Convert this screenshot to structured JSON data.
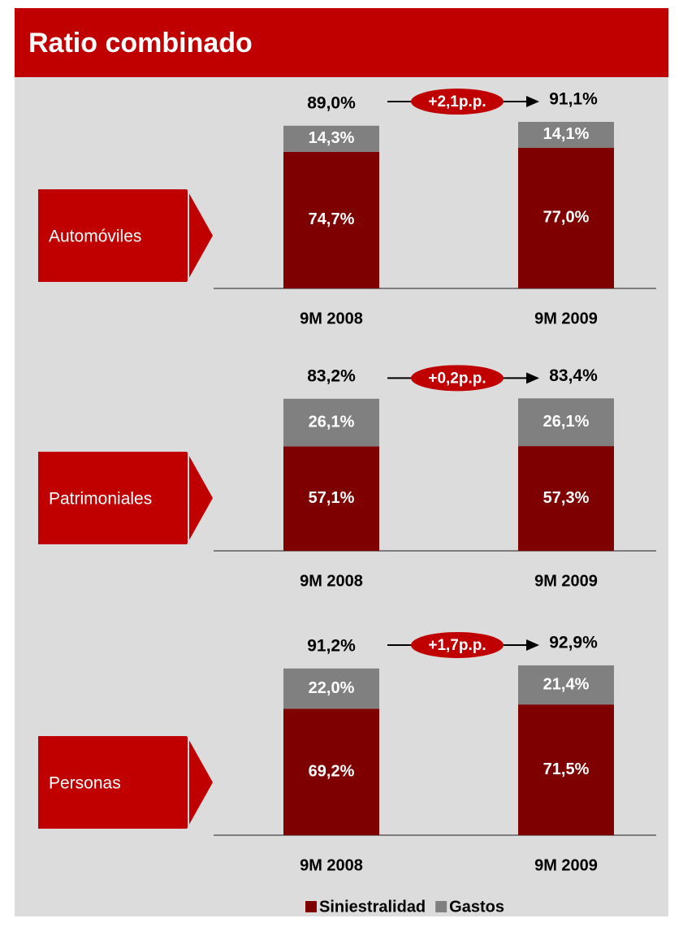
{
  "title": "Ratio combinado",
  "chart_data": [
    {
      "type": "bar",
      "stacked": true,
      "label": "Automóviles",
      "categories": [
        "9M 2008",
        "9M 2009"
      ],
      "series": [
        {
          "name": "Siniestralidad",
          "color": "#7f0000",
          "values": [
            74.7,
            77.0
          ],
          "value_labels": [
            "74,7%",
            "77,0%"
          ]
        },
        {
          "name": "Gastos",
          "color": "#808080",
          "values": [
            14.3,
            14.1
          ],
          "value_labels": [
            "14,3%",
            "14,1%"
          ]
        }
      ],
      "totals": [
        89.0,
        91.1
      ],
      "total_labels": [
        "89,0%",
        "91,1%"
      ],
      "annotation": "+2,1p.p.",
      "ylim": [
        0,
        100
      ]
    },
    {
      "type": "bar",
      "stacked": true,
      "label": "Patrimoniales",
      "categories": [
        "9M 2008",
        "9M 2009"
      ],
      "series": [
        {
          "name": "Siniestralidad",
          "color": "#7f0000",
          "values": [
            57.1,
            57.3
          ],
          "value_labels": [
            "57,1%",
            "57,3%"
          ]
        },
        {
          "name": "Gastos",
          "color": "#808080",
          "values": [
            26.1,
            26.1
          ],
          "value_labels": [
            "26,1%",
            "26,1%"
          ]
        }
      ],
      "totals": [
        83.2,
        83.4
      ],
      "total_labels": [
        "83,2%",
        "83,4%"
      ],
      "annotation": "+0,2p.p.",
      "ylim": [
        0,
        100
      ]
    },
    {
      "type": "bar",
      "stacked": true,
      "label": "Personas",
      "categories": [
        "9M 2008",
        "9M 2009"
      ],
      "series": [
        {
          "name": "Siniestralidad",
          "color": "#7f0000",
          "values": [
            69.2,
            71.5
          ],
          "value_labels": [
            "69,2%",
            "71,5%"
          ]
        },
        {
          "name": "Gastos",
          "color": "#808080",
          "values": [
            22.0,
            21.4
          ],
          "value_labels": [
            "22,0%",
            "21,4%"
          ]
        }
      ],
      "totals": [
        91.2,
        92.9
      ],
      "total_labels": [
        "91,2%",
        "92,9%"
      ],
      "annotation": "+1,7p.p.",
      "ylim": [
        0,
        100
      ],
      "legend": "bottom"
    }
  ]
}
